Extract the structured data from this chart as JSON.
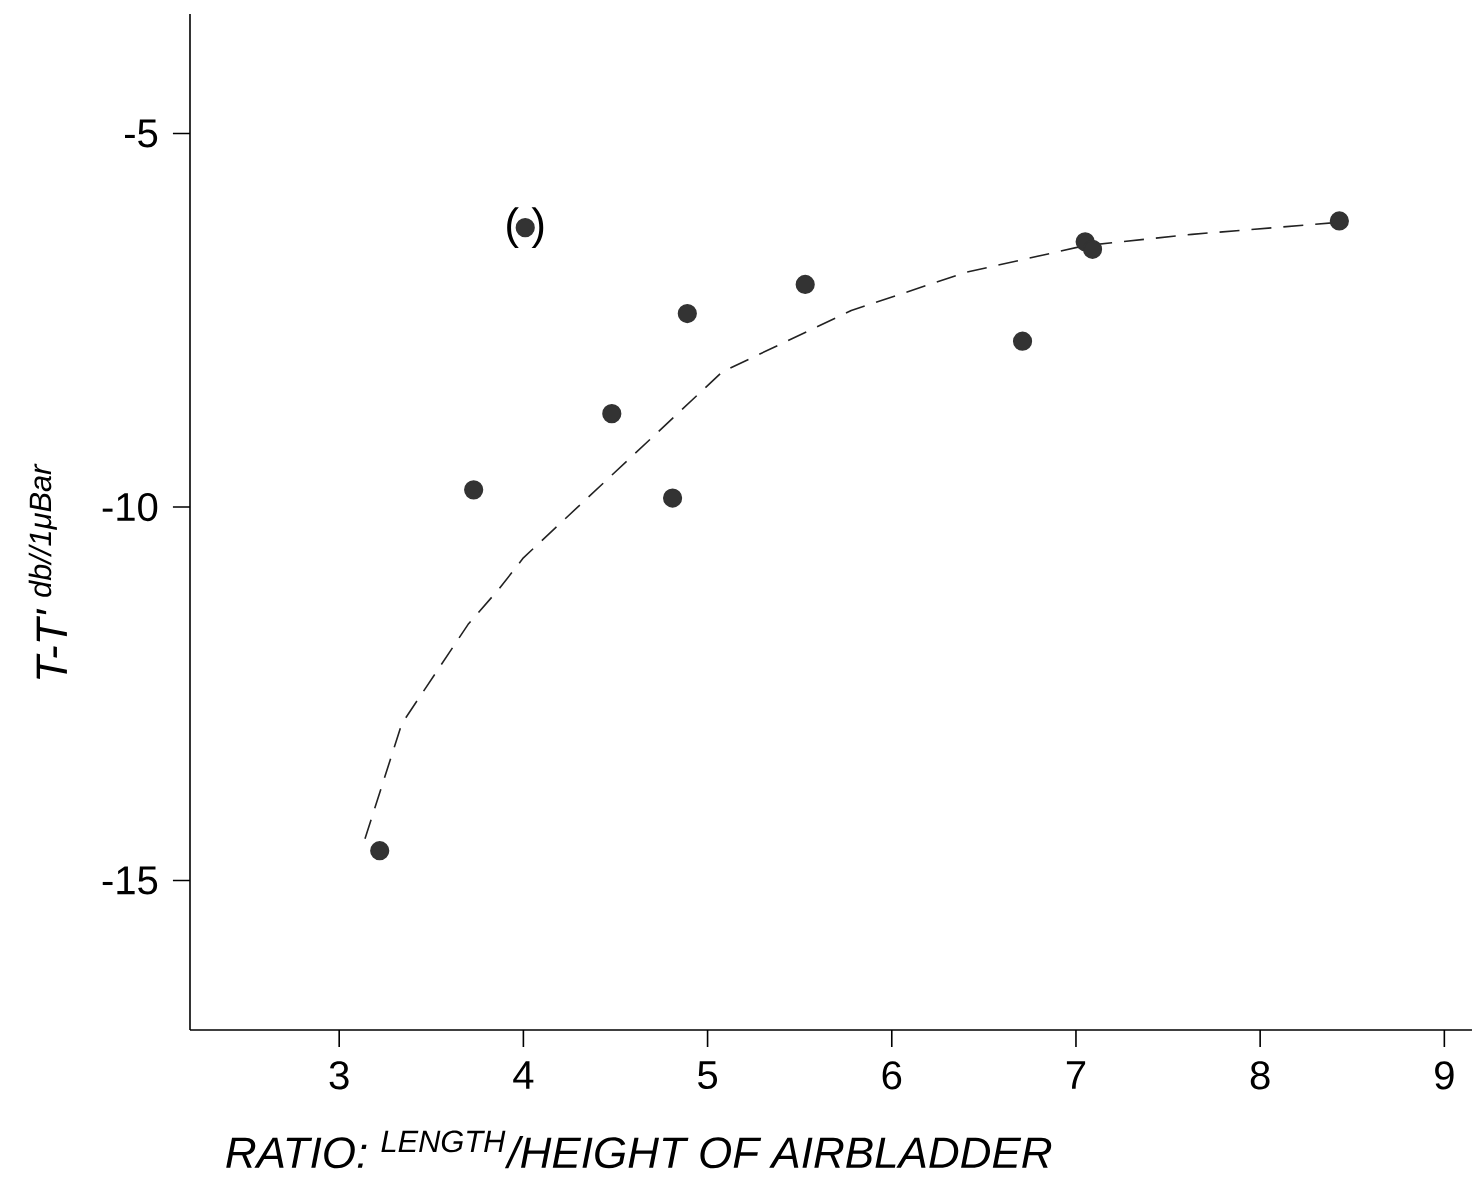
{
  "chart_data": {
    "type": "scatter",
    "xlabel": "RATIO:  $^{LENGTH}$/HEIGHT OF AIRBLADDER",
    "ylabel": "T-T' $^{db//1μBar}$",
    "xlim": [
      2.19,
      9.15
    ],
    "ylim": [
      -17,
      -3.4
    ],
    "xticks": [
      3,
      4,
      5,
      6,
      7,
      8,
      9
    ],
    "yticks": [
      -5,
      -10,
      -15
    ],
    "grid": false,
    "annotations": [
      {
        "text": "( )",
        "x": 4.01,
        "y": -6.26
      }
    ],
    "series": [
      {
        "color": "#333333",
        "marker": "circle",
        "x": [
          3.22,
          3.73,
          4.01,
          4.48,
          4.81,
          4.89,
          5.53,
          6.71,
          7.05,
          7.09,
          8.43
        ],
        "values": [
          -14.6,
          -9.77,
          -6.26,
          -8.75,
          -9.88,
          -7.41,
          -7.02,
          -7.78,
          -6.45,
          -6.55,
          -6.17
        ]
      },
      {
        "type": "line",
        "color": "#222222",
        "marker": "none",
        "line_style": "dashed",
        "x": [
          3.14,
          3.34,
          3.7,
          3.87,
          4.0,
          5.08,
          5.78,
          6.4,
          7.05,
          7.63,
          8.42
        ],
        "values": [
          -14.44,
          -12.9,
          -11.57,
          -11.09,
          -10.68,
          -8.19,
          -7.37,
          -6.86,
          -6.5,
          -6.35,
          -6.19
        ]
      }
    ]
  }
}
